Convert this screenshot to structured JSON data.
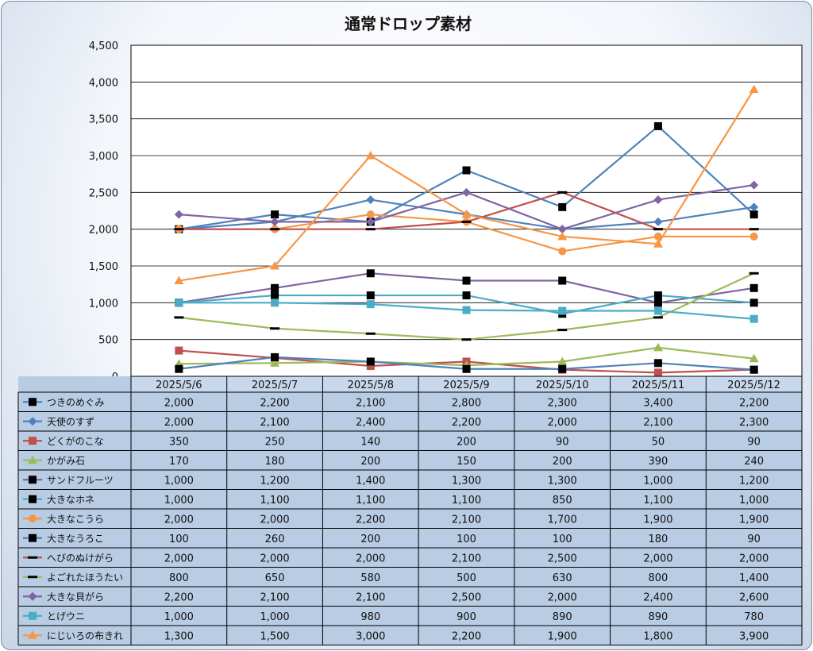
{
  "chart_data": {
    "type": "line",
    "title": "通常ドロップ素材",
    "ylim": [
      0,
      4500
    ],
    "ytick_labels": [
      "0",
      "500",
      "1,000",
      "1,500",
      "2,000",
      "2,500",
      "3,000",
      "3,500",
      "4,000",
      "4,500"
    ],
    "categories": [
      "2025/5/6",
      "2025/5/7",
      "2025/5/8",
      "2025/5/9",
      "2025/5/10",
      "2025/5/11",
      "2025/5/12"
    ],
    "grid": true,
    "legend": "data-table",
    "series": [
      {
        "name": "つきのめぐみ",
        "color": "#4f81bd",
        "marker": "square-black",
        "values": [
          2000,
          2200,
          2100,
          2800,
          2300,
          3400,
          2200
        ],
        "display": [
          "2,000",
          "2,200",
          "2,100",
          "2,800",
          "2,300",
          "3,400",
          "2,200"
        ]
      },
      {
        "name": "天使のすず",
        "color": "#4f81bd",
        "marker": "diamond",
        "values": [
          2000,
          2100,
          2400,
          2200,
          2000,
          2100,
          2300
        ],
        "display": [
          "2,000",
          "2,100",
          "2,400",
          "2,200",
          "2,000",
          "2,100",
          "2,300"
        ]
      },
      {
        "name": "どくがのこな",
        "color": "#c0504d",
        "marker": "square",
        "values": [
          350,
          250,
          140,
          200,
          90,
          50,
          90
        ],
        "display": [
          "350",
          "250",
          "140",
          "200",
          "90",
          "50",
          "90"
        ]
      },
      {
        "name": "かがみ石",
        "color": "#9bbb59",
        "marker": "triangle",
        "values": [
          170,
          180,
          200,
          150,
          200,
          390,
          240
        ],
        "display": [
          "170",
          "180",
          "200",
          "150",
          "200",
          "390",
          "240"
        ]
      },
      {
        "name": "サンドフルーツ",
        "color": "#8064a2",
        "marker": "square-black",
        "values": [
          1000,
          1200,
          1400,
          1300,
          1300,
          1000,
          1200
        ],
        "display": [
          "1,000",
          "1,200",
          "1,400",
          "1,300",
          "1,300",
          "1,000",
          "1,200"
        ]
      },
      {
        "name": "大きなホネ",
        "color": "#4bacc6",
        "marker": "square-black",
        "values": [
          1000,
          1100,
          1100,
          1100,
          850,
          1100,
          1000
        ],
        "display": [
          "1,000",
          "1,100",
          "1,100",
          "1,100",
          "850",
          "1,100",
          "1,000"
        ]
      },
      {
        "name": "大きなこうら",
        "color": "#f79646",
        "marker": "circle",
        "values": [
          2000,
          2000,
          2200,
          2100,
          1700,
          1900,
          1900
        ],
        "display": [
          "2,000",
          "2,000",
          "2,200",
          "2,100",
          "1,700",
          "1,900",
          "1,900"
        ]
      },
      {
        "name": "大きなうろこ",
        "color": "#4f81bd",
        "marker": "square-black",
        "values": [
          100,
          260,
          200,
          100,
          100,
          180,
          90
        ],
        "display": [
          "100",
          "260",
          "200",
          "100",
          "100",
          "180",
          "90"
        ]
      },
      {
        "name": "へびのぬけがら",
        "color": "#c0504d",
        "marker": "dash",
        "values": [
          2000,
          2000,
          2000,
          2100,
          2500,
          2000,
          2000
        ],
        "display": [
          "2,000",
          "2,000",
          "2,000",
          "2,100",
          "2,500",
          "2,000",
          "2,000"
        ]
      },
      {
        "name": "よごれたほうたい",
        "color": "#9bbb59",
        "marker": "dash",
        "values": [
          800,
          650,
          580,
          500,
          630,
          800,
          1400
        ],
        "display": [
          "800",
          "650",
          "580",
          "500",
          "630",
          "800",
          "1,400"
        ]
      },
      {
        "name": "大きな貝がら",
        "color": "#8064a2",
        "marker": "diamond",
        "values": [
          2200,
          2100,
          2100,
          2500,
          2000,
          2400,
          2600
        ],
        "display": [
          "2,200",
          "2,100",
          "2,100",
          "2,500",
          "2,000",
          "2,400",
          "2,600"
        ]
      },
      {
        "name": "とげウニ",
        "color": "#4bacc6",
        "marker": "square",
        "values": [
          1000,
          1000,
          980,
          900,
          890,
          890,
          780
        ],
        "display": [
          "1,000",
          "1,000",
          "980",
          "900",
          "890",
          "890",
          "780"
        ]
      },
      {
        "name": "にじいろの布きれ",
        "color": "#f79646",
        "marker": "triangle",
        "values": [
          1300,
          1500,
          3000,
          2200,
          1900,
          1800,
          3900
        ],
        "display": [
          "1,300",
          "1,500",
          "3,000",
          "2,200",
          "1,900",
          "1,800",
          "3,900"
        ]
      }
    ]
  }
}
